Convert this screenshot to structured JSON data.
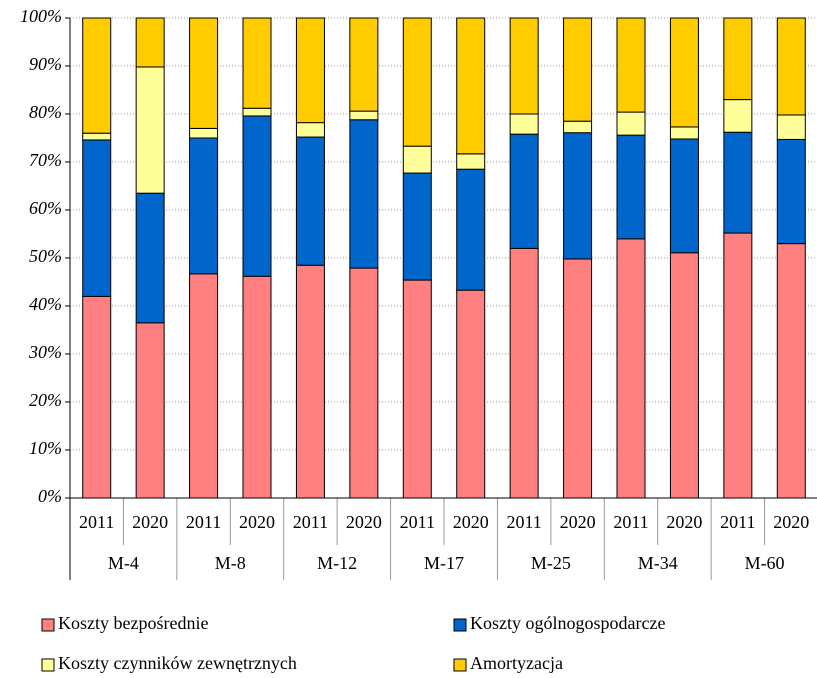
{
  "chart_data": {
    "type": "stacked-bar",
    "categories": [
      "2011",
      "2020",
      "2011",
      "2020",
      "2011",
      "2020",
      "2011",
      "2020",
      "2011",
      "2020",
      "2011",
      "2020",
      "2011",
      "2020"
    ],
    "groups": [
      "M-4",
      "M-8",
      "M-12",
      "M-17",
      "M-25",
      "M-34",
      "M-60"
    ],
    "series": [
      {
        "name": "Koszty bezpośrednie",
        "color": "#ff8080",
        "values": [
          42,
          36.5,
          46.7,
          46.2,
          48.5,
          47.9,
          45.4,
          43.3,
          52,
          49.8,
          54,
          51.1,
          55.2,
          53
        ]
      },
      {
        "name": "Koszty ogólnogospodarcze",
        "color": "#0066cc",
        "values": [
          32.6,
          27,
          28.3,
          33.4,
          26.7,
          30.9,
          22.3,
          25.2,
          23.8,
          26.3,
          21.6,
          23.7,
          21,
          21.7
        ]
      },
      {
        "name": "Koszty czynników zewnętrznych",
        "color": "#ffff99",
        "values": [
          1.4,
          26.3,
          2,
          1.6,
          3,
          1.8,
          5.6,
          3.2,
          4.2,
          2.4,
          4.8,
          2.5,
          6.8,
          5.1
        ]
      },
      {
        "name": "Amortyzacja",
        "color": "#ffcc00",
        "values": [
          24,
          10.2,
          23,
          18.8,
          21.8,
          19.4,
          26.7,
          28.3,
          20,
          21.5,
          19.6,
          22.7,
          17,
          20.2
        ]
      }
    ],
    "ylim": [
      0,
      100
    ],
    "yticks": [
      {
        "value": 0,
        "label": "0%"
      },
      {
        "value": 10,
        "label": "10%"
      },
      {
        "value": 20,
        "label": "20%"
      },
      {
        "value": 30,
        "label": "30%"
      },
      {
        "value": 40,
        "label": "40%"
      },
      {
        "value": 50,
        "label": "50%"
      },
      {
        "value": 60,
        "label": "60%"
      },
      {
        "value": 70,
        "label": "70%"
      },
      {
        "value": 80,
        "label": "80%"
      },
      {
        "value": 90,
        "label": "90%"
      },
      {
        "value": 100,
        "label": "100%"
      }
    ],
    "grid": true
  }
}
